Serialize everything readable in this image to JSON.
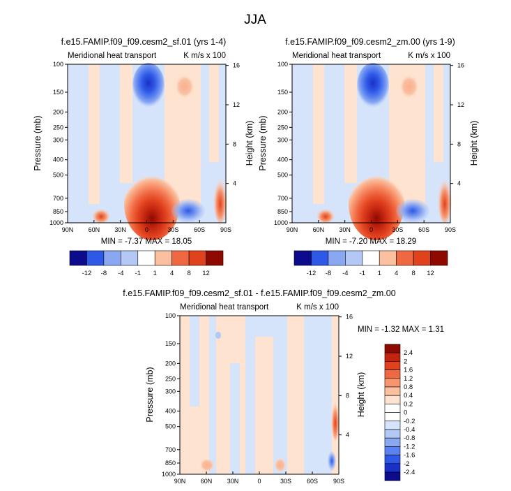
{
  "figure": {
    "title": "JJA"
  },
  "colors": {
    "blue": [
      "#0b0b8c",
      "#1b30c8",
      "#2e58e6",
      "#5a82f0",
      "#8aa8f2",
      "#b3c8f5",
      "#d5e3fb"
    ],
    "white": "#ffffff",
    "red": [
      "#fde3d0",
      "#fac0a0",
      "#f7956e",
      "#f06842",
      "#e0421e",
      "#c22410",
      "#8e0a00"
    ]
  },
  "chart_data": [
    {
      "type": "heatmap",
      "title": "f.e15.FAMIP.f09_f09.cesm2_sf.01 (yrs 1-4)",
      "left_label": "Meridional heat transport",
      "right_label": "K m/s x 100",
      "xlabel": "",
      "ylabel": "Pressure (mb)",
      "y2label": "Height (km)",
      "x_ticks": [
        "90N",
        "60N",
        "30N",
        "0",
        "30S",
        "60S",
        "90S"
      ],
      "y_ticks": [
        "100",
        "150",
        "200",
        "250",
        "300",
        "400",
        "500",
        "700",
        "850",
        "1000"
      ],
      "y2_ticks": [
        "16",
        "12",
        "8",
        "4"
      ],
      "ylim": [
        1000,
        100
      ],
      "y_scale": "log",
      "stats": "MIN =  -7.37  MAX =  18.05",
      "colorbar": {
        "orientation": "horizontal",
        "labels": [
          "-12",
          "-8",
          "-4",
          "-1",
          "1",
          "4",
          "8",
          "12"
        ]
      },
      "features": [
        {
          "kind": "positive_max",
          "lat": 12,
          "p": 950,
          "value": 18.05
        },
        {
          "kind": "negative_min",
          "lat": 0,
          "p": 200,
          "value": -7.37
        },
        {
          "kind": "negative",
          "lat": -50,
          "p": 900,
          "value": -5
        },
        {
          "kind": "positive",
          "lat": -40,
          "p": 200,
          "value": 2
        },
        {
          "kind": "positive",
          "lat": -88,
          "p": 800,
          "value": 10
        }
      ]
    },
    {
      "type": "heatmap",
      "title": "f.e15.FAMIP.f09_f09.cesm2_zm.00 (yrs 1-9)",
      "left_label": "Meridional heat transport",
      "right_label": "K m/s x 100",
      "xlabel": "",
      "ylabel": "Pressure (mb)",
      "y2label": "Height (km)",
      "x_ticks": [
        "90N",
        "60N",
        "30N",
        "0",
        "30S",
        "60S",
        "90S"
      ],
      "y_ticks": [
        "100",
        "150",
        "200",
        "250",
        "300",
        "400",
        "500",
        "700",
        "850",
        "1000"
      ],
      "y2_ticks": [
        "16",
        "12",
        "8",
        "4"
      ],
      "ylim": [
        1000,
        100
      ],
      "y_scale": "log",
      "stats": "MIN =  -7.20  MAX =  18.29",
      "colorbar": {
        "orientation": "horizontal",
        "labels": [
          "-12",
          "-8",
          "-4",
          "-1",
          "1",
          "4",
          "8",
          "12"
        ]
      },
      "features": [
        {
          "kind": "positive_max",
          "lat": 12,
          "p": 950,
          "value": 18.29
        },
        {
          "kind": "negative_min",
          "lat": 0,
          "p": 200,
          "value": -7.2
        },
        {
          "kind": "negative",
          "lat": -50,
          "p": 900,
          "value": -5
        },
        {
          "kind": "positive",
          "lat": -40,
          "p": 200,
          "value": 2
        },
        {
          "kind": "positive",
          "lat": -88,
          "p": 800,
          "value": 10
        }
      ]
    },
    {
      "type": "heatmap",
      "title": "f.e15.FAMIP.f09_f09.cesm2_sf.01 - f.e15.FAMIP.f09_f09.cesm2_zm.00",
      "left_label": "Meridional heat transport",
      "right_label": "K m/s x 100",
      "xlabel": "",
      "ylabel": "Pressure (mb)",
      "y2label": "Height (km)",
      "x_ticks": [
        "90N",
        "60N",
        "30N",
        "0",
        "30S",
        "60S",
        "90S"
      ],
      "y_ticks": [
        "100",
        "150",
        "200",
        "250",
        "300",
        "400",
        "500",
        "700",
        "850",
        "1000"
      ],
      "y2_ticks": [
        "16",
        "12",
        "8",
        "4"
      ],
      "ylim": [
        1000,
        100
      ],
      "y_scale": "log",
      "stats": "MIN =  -1.32  MAX =   1.31",
      "colorbar": {
        "orientation": "vertical",
        "labels": [
          "2.4",
          "2",
          "1.6",
          "1.2",
          "0.8",
          "0.4",
          "0.2",
          "0",
          "-0.2",
          "-0.4",
          "-0.8",
          "-1.2",
          "-1.6",
          "-2",
          "-2.4"
        ]
      },
      "features": [
        {
          "kind": "positive",
          "lat": -88,
          "p": 700,
          "value": 1.31
        },
        {
          "kind": "negative",
          "lat": -85,
          "p": 920,
          "value": -1.32
        }
      ]
    }
  ]
}
